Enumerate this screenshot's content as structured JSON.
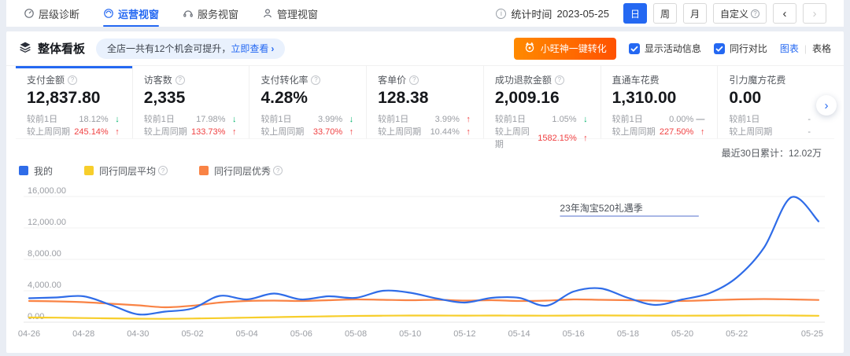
{
  "nav": {
    "items": [
      {
        "label": "层级诊断"
      },
      {
        "label": "运营视窗"
      },
      {
        "label": "服务视窗"
      },
      {
        "label": "管理视窗"
      }
    ],
    "stat_time_label": "统计时间",
    "stat_time_value": "2023-05-25",
    "periods": {
      "day": "日",
      "week": "周",
      "month": "月",
      "custom": "自定义"
    }
  },
  "board": {
    "title": "整体看板",
    "tip_text": "全店一共有12个机会可提升，",
    "tip_link": "立即查看",
    "wangshen_button": "小旺神一键转化",
    "show_activity": "显示活动信息",
    "peer_compare": "同行对比",
    "view_chart": "图表",
    "view_table": "表格"
  },
  "metrics": {
    "compare_labels": {
      "prev": "较前1日",
      "week": "较上周同期"
    },
    "cards": [
      {
        "title": "支付金额",
        "value": "12,837.80",
        "prev": {
          "value": "18.12%",
          "arrow": "↓",
          "arrow_tone": "green",
          "value_tone": "grey"
        },
        "week": {
          "value": "245.14%",
          "arrow": "↑",
          "arrow_tone": "red",
          "value_tone": "red"
        }
      },
      {
        "title": "访客数",
        "value": "2,335",
        "prev": {
          "value": "17.98%",
          "arrow": "↓",
          "arrow_tone": "green",
          "value_tone": "grey"
        },
        "week": {
          "value": "133.73%",
          "arrow": "↑",
          "arrow_tone": "red",
          "value_tone": "red"
        }
      },
      {
        "title": "支付转化率",
        "value": "4.28%",
        "prev": {
          "value": "3.99%",
          "arrow": "↓",
          "arrow_tone": "green",
          "value_tone": "grey"
        },
        "week": {
          "value": "33.70%",
          "arrow": "↑",
          "arrow_tone": "red",
          "value_tone": "red"
        }
      },
      {
        "title": "客单价",
        "value": "128.38",
        "prev": {
          "value": "3.99%",
          "arrow": "↑",
          "arrow_tone": "red",
          "value_tone": "grey"
        },
        "week": {
          "value": "10.44%",
          "arrow": "↑",
          "arrow_tone": "red",
          "value_tone": "grey"
        }
      },
      {
        "title": "成功退款金额",
        "value": "2,009.16",
        "prev": {
          "value": "1.05%",
          "arrow": "↓",
          "arrow_tone": "green",
          "value_tone": "grey"
        },
        "week": {
          "value": "1582.15%",
          "arrow": "↑",
          "arrow_tone": "red",
          "value_tone": "red"
        }
      },
      {
        "title": "直通车花费",
        "value": "1,310.00",
        "prev": {
          "value": "0.00%",
          "arrow": "—",
          "arrow_tone": "grey",
          "value_tone": "grey"
        },
        "week": {
          "value": "227.50%",
          "arrow": "↑",
          "arrow_tone": "red",
          "value_tone": "red"
        }
      },
      {
        "title": "引力魔方花费",
        "value": "0.00",
        "prev": {
          "value": "-",
          "arrow": "",
          "arrow_tone": "grey",
          "value_tone": "grey"
        },
        "week": {
          "value": "-",
          "arrow": "",
          "arrow_tone": "grey",
          "value_tone": "grey"
        }
      }
    ]
  },
  "summary": "最近30日累计：12.02万",
  "colors": {
    "accent": "#2468f2",
    "red": "#f04142",
    "green": "#00b36b",
    "orange_button_start": "#ff8a00",
    "orange_button_end": "#ff5200",
    "annotation_line": "#a9b7e6"
  },
  "chart_data": {
    "type": "line",
    "title": "",
    "xlabel": "",
    "ylabel": "",
    "ylim": [
      0,
      16000
    ],
    "yticks": [
      "0.00",
      "4,000.00",
      "8,000.00",
      "12,000.00",
      "16,000.00"
    ],
    "grid": true,
    "legend_position": "top-left",
    "x": [
      "04-26",
      "04-27",
      "04-28",
      "04-29",
      "04-30",
      "05-01",
      "05-02",
      "05-03",
      "05-04",
      "05-05",
      "05-06",
      "05-07",
      "05-08",
      "05-09",
      "05-10",
      "05-11",
      "05-12",
      "05-13",
      "05-14",
      "05-15",
      "05-16",
      "05-17",
      "05-18",
      "05-19",
      "05-20",
      "05-21",
      "05-22",
      "05-23",
      "05-24",
      "05-25"
    ],
    "xtick_indices": [
      0,
      2,
      4,
      6,
      8,
      10,
      12,
      14,
      16,
      18,
      20,
      22,
      24,
      26,
      29
    ],
    "series": [
      {
        "name": "我的",
        "color": "#2f6ce8",
        "values": [
          3050,
          3150,
          3300,
          2200,
          1000,
          1350,
          1750,
          3350,
          2900,
          3650,
          2900,
          3300,
          3100,
          4000,
          3750,
          3000,
          2500,
          3100,
          3100,
          2100,
          3900,
          4300,
          3100,
          2200,
          2900,
          3700,
          5700,
          9500,
          15900,
          12838
        ]
      },
      {
        "name": "同行同层平均",
        "color": "#f7ce2b",
        "values": [
          600,
          580,
          530,
          490,
          450,
          430,
          470,
          520,
          580,
          640,
          700,
          750,
          800,
          830,
          850,
          850,
          840,
          850,
          840,
          830,
          850,
          860,
          850,
          840,
          830,
          840,
          860,
          870,
          850,
          820
        ]
      },
      {
        "name": "同行同层优秀",
        "color": "#f98345",
        "values": [
          2700,
          2650,
          2550,
          2350,
          2150,
          1900,
          2100,
          2500,
          2700,
          2750,
          2700,
          2800,
          2900,
          2850,
          2800,
          2850,
          2750,
          2800,
          2700,
          2750,
          2900,
          2850,
          2800,
          2750,
          2700,
          2800,
          2900,
          2950,
          2900,
          2830
        ]
      }
    ],
    "legend": [
      {
        "label": "我的",
        "info": false
      },
      {
        "label": "同行同层平均",
        "info": true
      },
      {
        "label": "同行同层优秀",
        "info": true
      }
    ],
    "annotation": {
      "text": "23年淘宝520礼遇季",
      "from_index": 19.5,
      "to_index": 24.6,
      "line_color": "#a9b7e6"
    }
  }
}
